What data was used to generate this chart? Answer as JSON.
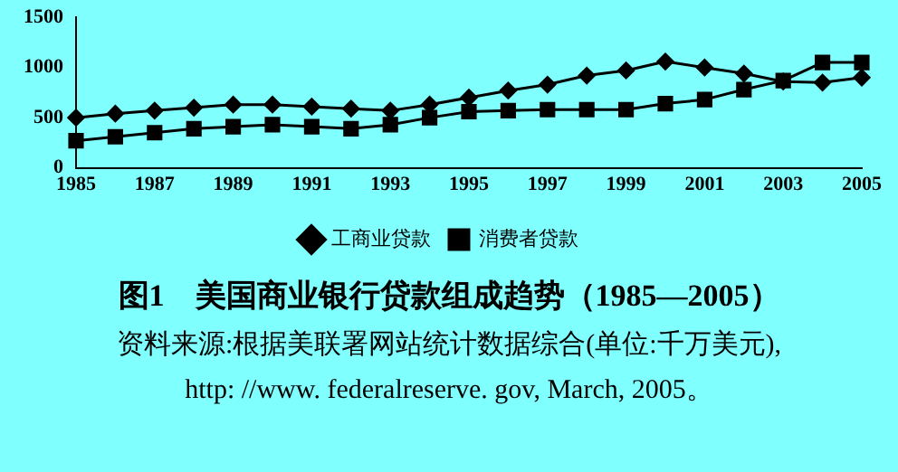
{
  "chart_data": {
    "type": "line",
    "title": "图1　美国商业银行贷款组成趋势（1985—2005）",
    "annotations": [
      "资料来源:根据美联署网站统计数据综合(单位:千万美元),",
      "http: //www. federalreserve. gov, March, 2005。"
    ],
    "categories": [
      "1985",
      null,
      "1987",
      null,
      "1989",
      null,
      "1991",
      null,
      "1993",
      null,
      "1995",
      null,
      "1997",
      null,
      "1999",
      null,
      "2001",
      null,
      "2003",
      null,
      "2005"
    ],
    "series": [
      {
        "name": "工商业贷款",
        "color": "#000000",
        "marker": "diamond",
        "values": [
          500,
          540,
          570,
          600,
          630,
          630,
          610,
          590,
          570,
          630,
          700,
          770,
          830,
          920,
          970,
          1060,
          1000,
          940,
          860,
          850,
          900
        ]
      },
      {
        "name": "消费者贷款",
        "color": "#000000",
        "marker": "square",
        "values": [
          270,
          310,
          350,
          390,
          410,
          430,
          410,
          390,
          430,
          500,
          560,
          570,
          580,
          580,
          580,
          640,
          680,
          780,
          870,
          1050,
          1050
        ]
      }
    ],
    "ylim": [
      0,
      1500
    ],
    "yticks": [
      0,
      500,
      1000,
      1500
    ],
    "grid": false,
    "legend": "bottom",
    "line_style": "solid"
  }
}
